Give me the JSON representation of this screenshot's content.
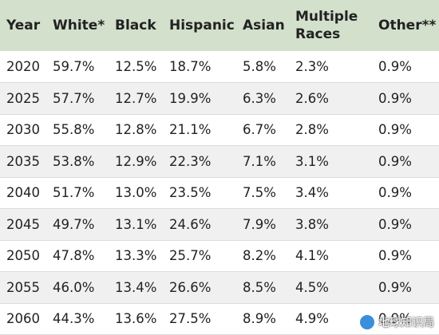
{
  "table": {
    "headers": [
      "Year",
      "White*",
      "Black",
      "Hispanic",
      "Asian",
      "Multiple Races",
      "Other**"
    ],
    "rows": [
      [
        "2020",
        "59.7%",
        "12.5%",
        "18.7%",
        "5.8%",
        "2.3%",
        "0.9%"
      ],
      [
        "2025",
        "57.7%",
        "12.7%",
        "19.9%",
        "6.3%",
        "2.6%",
        "0.9%"
      ],
      [
        "2030",
        "55.8%",
        "12.8%",
        "21.1%",
        "6.7%",
        "2.8%",
        "0.9%"
      ],
      [
        "2035",
        "53.8%",
        "12.9%",
        "22.3%",
        "7.1%",
        "3.1%",
        "0.9%"
      ],
      [
        "2040",
        "51.7%",
        "13.0%",
        "23.5%",
        "7.5%",
        "3.4%",
        "0.9%"
      ],
      [
        "2045",
        "49.7%",
        "13.1%",
        "24.6%",
        "7.9%",
        "3.8%",
        "0.9%"
      ],
      [
        "2050",
        "47.8%",
        "13.3%",
        "25.7%",
        "8.2%",
        "4.1%",
        "0.9%"
      ],
      [
        "2055",
        "46.0%",
        "13.4%",
        "26.6%",
        "8.5%",
        "4.5%",
        "0.9%"
      ],
      [
        "2060",
        "44.3%",
        "13.6%",
        "27.5%",
        "8.9%",
        "4.9%",
        "0.9%"
      ]
    ]
  },
  "watermark": {
    "text": "地球知识局"
  },
  "colors": {
    "header_bg": "#d3e0cc",
    "row_alt_bg": "#f0f0f0"
  }
}
